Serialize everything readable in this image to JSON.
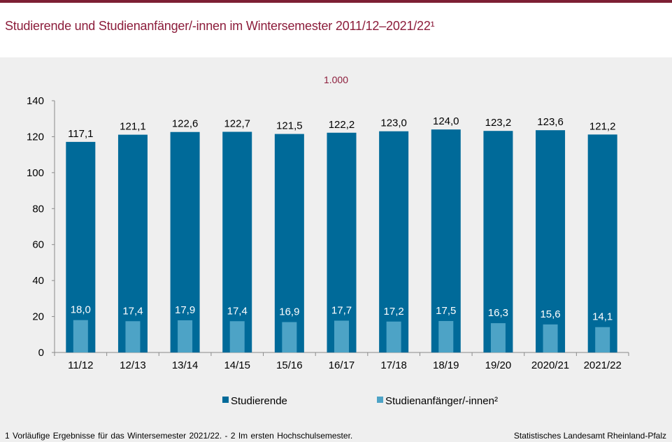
{
  "title": "Studierende und Studienanfänger/-innen im Wintersemester 2011/12–2021/22¹",
  "unit_label": "1.000",
  "footnote": "1 Vorläufige  Ergebnisse für das Wintersemester 2021/22. - 2 Im ersten Hochschulsemester.",
  "source": "Statistisches Landesamt Rheinland-Pfalz",
  "colors": {
    "studierende": "#006a99",
    "anfaenger": "#4da3c6",
    "title": "#8c1d3b"
  },
  "chart_data": {
    "type": "bar",
    "categories": [
      "11/12",
      "12/13",
      "13/14",
      "14/15",
      "15/16",
      "16/17",
      "17/18",
      "18/19",
      "19/20",
      "2020/21",
      "2021/22"
    ],
    "series": [
      {
        "name": "Studierende",
        "values": [
          117.1,
          121.1,
          122.6,
          122.7,
          121.5,
          122.2,
          123.0,
          124.0,
          123.2,
          123.6,
          121.2
        ],
        "labels": [
          "117,1",
          "121,1",
          "122,6",
          "122,7",
          "121,5",
          "122,2",
          "123,0",
          "124,0",
          "123,2",
          "123,6",
          "121,2"
        ]
      },
      {
        "name": "Studienanfänger/-innen²",
        "values": [
          18.0,
          17.4,
          17.9,
          17.4,
          16.9,
          17.7,
          17.2,
          17.5,
          16.3,
          15.6,
          14.1
        ],
        "labels": [
          "18,0",
          "17,4",
          "17,9",
          "17,4",
          "16,9",
          "17,7",
          "17,2",
          "17,5",
          "16,3",
          "15,6",
          "14,1"
        ]
      }
    ],
    "yticks": [
      0,
      20,
      40,
      60,
      80,
      100,
      120,
      140
    ],
    "ylim": [
      0,
      140
    ],
    "legend_position": "bottom",
    "grid": false
  }
}
